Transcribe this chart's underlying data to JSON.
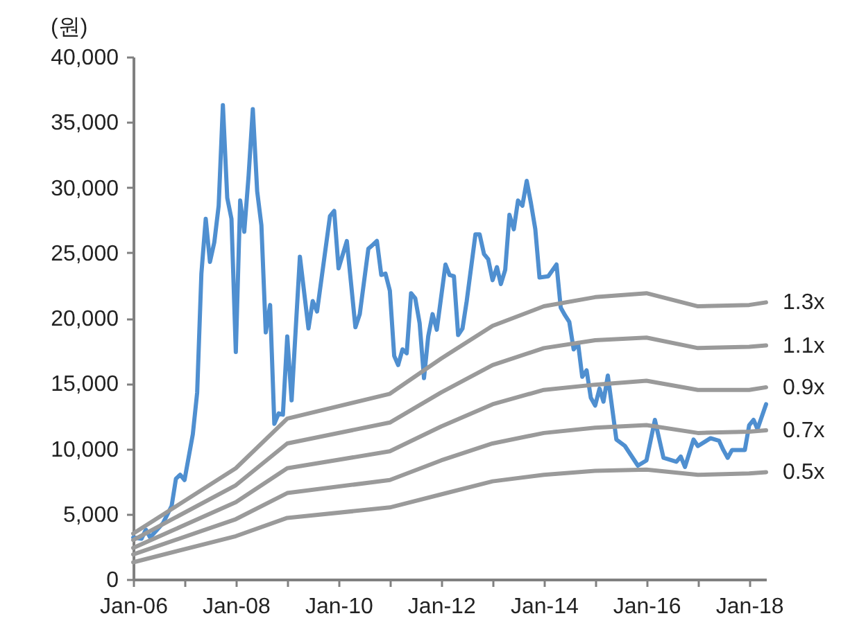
{
  "chart_data": {
    "type": "line",
    "ylabel": "(원)",
    "xlim": [
      "2006-01",
      "2018-05"
    ],
    "xticks": [
      {
        "value": "2006-01",
        "label": "Jan-06"
      },
      {
        "value": "2007-01",
        "label": null
      },
      {
        "value": "2008-01",
        "label": "Jan-08"
      },
      {
        "value": "2009-01",
        "label": null
      },
      {
        "value": "2010-01",
        "label": "Jan-10"
      },
      {
        "value": "2011-01",
        "label": null
      },
      {
        "value": "2012-01",
        "label": "Jan-12"
      },
      {
        "value": "2013-01",
        "label": null
      },
      {
        "value": "2014-01",
        "label": "Jan-14"
      },
      {
        "value": "2015-01",
        "label": null
      },
      {
        "value": "2016-01",
        "label": "Jan-16"
      },
      {
        "value": "2017-01",
        "label": null
      },
      {
        "value": "2018-01",
        "label": "Jan-18"
      }
    ],
    "ylim": [
      0,
      40000
    ],
    "yticks": [
      {
        "value": 0,
        "label": "0"
      },
      {
        "value": 5000,
        "label": "5,000"
      },
      {
        "value": 10000,
        "label": "10,000"
      },
      {
        "value": 15000,
        "label": "15,000"
      },
      {
        "value": 20000,
        "label": "20,000"
      },
      {
        "value": 25000,
        "label": "25,000"
      },
      {
        "value": 30000,
        "label": "30,000"
      },
      {
        "value": 35000,
        "label": "35,000"
      },
      {
        "value": 40000,
        "label": "40,000"
      }
    ],
    "grid": false,
    "legend": false,
    "marker": "none",
    "line_style": "solid",
    "series": [
      {
        "color": "#4f8fd0",
        "x": [
          "2006-01",
          "2006-03",
          "2006-04",
          "2006-05",
          "2006-08",
          "2006-10",
          "2006-11",
          "2006-12",
          "2007-01",
          "2007-03",
          "2007-04",
          "2007-05",
          "2007-06",
          "2007-07",
          "2007-08",
          "2007-09",
          "2007-10",
          "2007-11",
          "2007-12",
          "2008-01",
          "2008-02",
          "2008-03",
          "2008-04",
          "2008-05",
          "2008-06",
          "2008-07",
          "2008-08",
          "2008-09",
          "2008-10",
          "2008-11",
          "2008-12",
          "2009-01",
          "2009-02",
          "2009-04",
          "2009-06",
          "2009-07",
          "2009-08",
          "2009-11",
          "2009-12",
          "2010-01",
          "2010-03",
          "2010-05",
          "2010-06",
          "2010-08",
          "2010-09",
          "2010-10",
          "2010-11",
          "2010-12",
          "2011-01",
          "2011-02",
          "2011-03",
          "2011-04",
          "2011-05",
          "2011-06",
          "2011-07",
          "2011-08",
          "2011-09",
          "2011-10",
          "2011-11",
          "2011-12",
          "2012-02",
          "2012-03",
          "2012-04",
          "2012-05",
          "2012-06",
          "2012-07",
          "2012-09",
          "2012-10",
          "2012-11",
          "2012-12",
          "2013-01",
          "2013-02",
          "2013-03",
          "2013-04",
          "2013-05",
          "2013-06",
          "2013-07",
          "2013-08",
          "2013-09",
          "2013-10",
          "2013-11",
          "2013-12",
          "2014-02",
          "2014-04",
          "2014-05",
          "2014-06",
          "2014-07",
          "2014-08",
          "2014-09",
          "2014-10",
          "2014-11",
          "2014-12",
          "2015-01",
          "2015-02",
          "2015-03",
          "2015-04",
          "2015-06",
          "2015-08",
          "2015-11",
          "2016-01",
          "2016-03",
          "2016-05",
          "2016-08",
          "2016-09",
          "2016-10",
          "2016-12",
          "2017-01",
          "2017-04",
          "2017-06",
          "2017-07",
          "2017-08",
          "2017-09",
          "2017-12",
          "2018-01",
          "2018-02",
          "2018-03",
          "2018-05"
        ],
        "values": [
          3200,
          3100,
          3800,
          3200,
          4300,
          5600,
          7700,
          8000,
          7600,
          11100,
          14300,
          23400,
          27600,
          24300,
          25800,
          28600,
          36300,
          29200,
          27600,
          17400,
          29000,
          26600,
          30900,
          36000,
          29700,
          27100,
          18900,
          21000,
          11900,
          12700,
          12600,
          18600,
          13700,
          24700,
          19200,
          21300,
          20500,
          27800,
          28200,
          23800,
          25900,
          19300,
          20300,
          25300,
          25600,
          25900,
          23300,
          23400,
          22100,
          17100,
          16400,
          17600,
          17300,
          21900,
          21500,
          19600,
          15400,
          18600,
          20300,
          19100,
          24100,
          23300,
          23200,
          18700,
          19200,
          21300,
          26400,
          26400,
          24900,
          24500,
          22900,
          23900,
          22600,
          23700,
          27900,
          26800,
          29000,
          28600,
          30500,
          28800,
          26800,
          23100,
          23200,
          24100,
          20800,
          20200,
          19700,
          17600,
          18100,
          15500,
          16000,
          13900,
          13300,
          14600,
          13600,
          15600,
          10700,
          10200,
          8700,
          9100,
          12200,
          9300,
          9000,
          9400,
          8600,
          10700,
          10200,
          10800,
          10600,
          9900,
          9300,
          9900,
          9900,
          11800,
          12200,
          11500,
          13400
        ]
      },
      {
        "name": "1.3x",
        "color": "#9a9a9a",
        "x": [
          "2006-01",
          "2008-01",
          "2009-01",
          "2011-01",
          "2012-01",
          "2013-01",
          "2014-01",
          "2015-01",
          "2016-01",
          "2017-01",
          "2018-01",
          "2018-05"
        ],
        "values": [
          3500,
          8500,
          12300,
          14200,
          16900,
          19400,
          20900,
          21600,
          21900,
          20900,
          21000,
          21200
        ]
      },
      {
        "name": "1.1x",
        "color": "#9a9a9a",
        "x": [
          "2006-01",
          "2008-01",
          "2009-01",
          "2011-01",
          "2012-01",
          "2013-01",
          "2014-01",
          "2015-01",
          "2016-01",
          "2017-01",
          "2018-01",
          "2018-05"
        ],
        "values": [
          3000,
          7200,
          10400,
          12000,
          14300,
          16400,
          17700,
          18300,
          18500,
          17700,
          17800,
          17900
        ]
      },
      {
        "name": "0.9x",
        "color": "#9a9a9a",
        "x": [
          "2006-01",
          "2008-01",
          "2009-01",
          "2011-01",
          "2012-01",
          "2013-01",
          "2014-01",
          "2015-01",
          "2016-01",
          "2017-01",
          "2018-01",
          "2018-05"
        ],
        "values": [
          2400,
          5900,
          8500,
          9800,
          11700,
          13400,
          14500,
          14900,
          15200,
          14500,
          14500,
          14700
        ]
      },
      {
        "name": "0.7x",
        "color": "#9a9a9a",
        "x": [
          "2006-01",
          "2008-01",
          "2009-01",
          "2011-01",
          "2012-01",
          "2013-01",
          "2014-01",
          "2015-01",
          "2016-01",
          "2017-01",
          "2018-01",
          "2018-05"
        ],
        "values": [
          1900,
          4600,
          6600,
          7600,
          9100,
          10400,
          11200,
          11600,
          11800,
          11200,
          11300,
          11400
        ]
      },
      {
        "name": "0.5x",
        "color": "#9a9a9a",
        "x": [
          "2006-01",
          "2008-01",
          "2009-01",
          "2011-01",
          "2012-01",
          "2013-01",
          "2014-01",
          "2015-01",
          "2016-01",
          "2017-01",
          "2018-01",
          "2018-05"
        ],
        "values": [
          1300,
          3300,
          4700,
          5500,
          6500,
          7500,
          8000,
          8300,
          8400,
          8000,
          8100,
          8200
        ]
      }
    ]
  }
}
